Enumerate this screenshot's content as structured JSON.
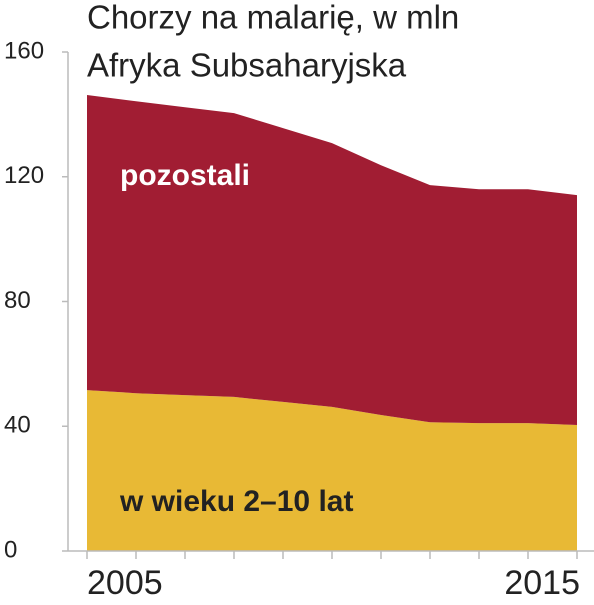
{
  "chart_data": {
    "type": "stacked-area",
    "title": "Chorzy na malarię, w mln",
    "subtitle": "Afryka Subsaharyjska",
    "x": [
      2005,
      2006,
      2007,
      2008,
      2009,
      2010,
      2011,
      2012,
      2013,
      2014,
      2015
    ],
    "xlim": [
      2005,
      2015
    ],
    "xticks": [
      2005,
      2015
    ],
    "ylim": [
      0,
      160
    ],
    "yticks": [
      0,
      40,
      80,
      120,
      160
    ],
    "series": [
      {
        "name": "w wieku 2–10 lat",
        "color": "#e8b935",
        "values": [
          51.6,
          50.6,
          50.0,
          49.4,
          47.8,
          46.2,
          43.6,
          41.3,
          41.0,
          41.0,
          40.4
        ]
      },
      {
        "name": "pozostali",
        "color": "#a11d33",
        "values": [
          94.6,
          93.6,
          92.3,
          91.0,
          87.8,
          84.6,
          80.1,
          76.0,
          75.0,
          75.0,
          73.7
        ]
      }
    ]
  }
}
